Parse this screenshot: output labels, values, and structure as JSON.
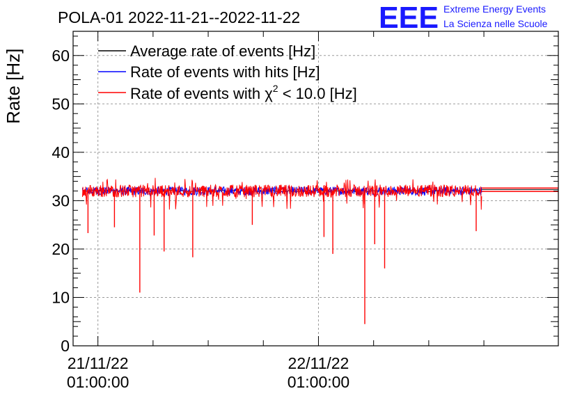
{
  "title": "POLA-01 2022-11-21--2022-11-22",
  "logo": {
    "letters": "EEE",
    "line1": "Extreme Energy Events",
    "line2": "La Scienza nelle Scuole",
    "color": "#1a1aff"
  },
  "chart_data": {
    "type": "line",
    "title": "POLA-01 2022-11-21--2022-11-22",
    "xlabel": "",
    "ylabel": "Rate [Hz]",
    "ylim": [
      0,
      65
    ],
    "yticks": [
      0,
      10,
      20,
      30,
      40,
      50,
      60
    ],
    "xlim_hours": [
      -2.25,
      41.75
    ],
    "x_unit": "hours since 21/11/22 01:00:00",
    "xticks": [
      {
        "hour": 0,
        "date": "21/11/22",
        "time": "01:00:00"
      },
      {
        "hour": 20,
        "date": "22/11/22",
        "time": "01:00:00"
      }
    ],
    "minor_xtick_hours": [
      5,
      10,
      15,
      25,
      30,
      35
    ],
    "grid": true,
    "legend_position": "top-left",
    "series": [
      {
        "name": "Average rate of events [Hz]",
        "color": "#000000",
        "data_x_range": [
          -1.4,
          34.8
        ],
        "level": 32.0,
        "extends_to": 41.75,
        "extended_level": 32.3
      },
      {
        "name": "Rate of events with hits [Hz]",
        "color": "#0000ff",
        "data_x_range": [
          -1.4,
          34.8
        ],
        "level": 32.0
      },
      {
        "name": "Rate of events with χ² < 10.0 [Hz]",
        "legend_parts": {
          "pre": "Rate of events with ",
          "sym": "χ",
          "sup": "2",
          "post": " < 10.0 [Hz]"
        },
        "color": "#ff0000",
        "data_x_range": [
          -1.4,
          34.8
        ],
        "level": 32.0,
        "noise_range": [
          30.5,
          33.6
        ],
        "extends_to": 41.75,
        "extended_level": 32.6
      }
    ],
    "dips": [
      {
        "x": -0.9,
        "y": 23.3
      },
      {
        "x": 1.5,
        "y": 24.5
      },
      {
        "x": 3.8,
        "y": 11.0
      },
      {
        "x": 5.1,
        "y": 22.8
      },
      {
        "x": 6.0,
        "y": 19.5
      },
      {
        "x": 8.6,
        "y": 18.3
      },
      {
        "x": 14.0,
        "y": 25.0
      },
      {
        "x": 20.5,
        "y": 22.5
      },
      {
        "x": 21.3,
        "y": 19.0
      },
      {
        "x": 24.2,
        "y": 4.5
      },
      {
        "x": 25.1,
        "y": 21.0
      },
      {
        "x": 26.0,
        "y": 16.0
      },
      {
        "x": 34.3,
        "y": 23.7
      }
    ]
  }
}
